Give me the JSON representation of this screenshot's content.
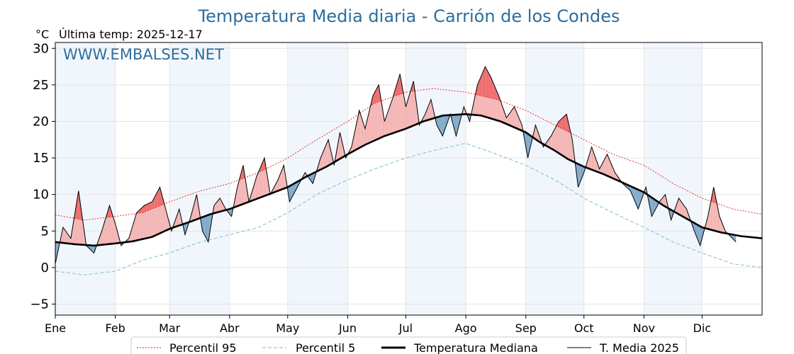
{
  "chart_data": {
    "type": "line",
    "title": "Temperatura Media diaria - Carrión de los Condes",
    "unit_label": "°C",
    "last_temp_label": "Última temp: 2025-12-17",
    "watermark": "WWW.EMBALSES.NET",
    "ylim": [
      -6.5,
      30.8
    ],
    "y_ticks": [
      -5,
      0,
      5,
      10,
      15,
      20,
      25,
      30
    ],
    "x_range_days": [
      0,
      365
    ],
    "months": [
      {
        "label": "Ene",
        "day": 0
      },
      {
        "label": "Feb",
        "day": 31
      },
      {
        "label": "Mar",
        "day": 59
      },
      {
        "label": "Abr",
        "day": 90
      },
      {
        "label": "May",
        "day": 120
      },
      {
        "label": "Jun",
        "day": 151
      },
      {
        "label": "Jul",
        "day": 181
      },
      {
        "label": "Ago",
        "day": 212
      },
      {
        "label": "Sep",
        "day": 243
      },
      {
        "label": "Oct",
        "day": 273
      },
      {
        "label": "Nov",
        "day": 304
      },
      {
        "label": "Dic",
        "day": 334
      }
    ],
    "grid": true,
    "legend_position": "bottom",
    "series": [
      {
        "name": "Percentil 95",
        "style": "dotted",
        "color": "#e41a1c",
        "points": [
          [
            0,
            7.2
          ],
          [
            15,
            6.5
          ],
          [
            31,
            7.0
          ],
          [
            45,
            7.5
          ],
          [
            59,
            9.0
          ],
          [
            75,
            10.5
          ],
          [
            90,
            11.5
          ],
          [
            105,
            13.0
          ],
          [
            120,
            15.0
          ],
          [
            135,
            17.5
          ],
          [
            151,
            20.0
          ],
          [
            165,
            22.5
          ],
          [
            181,
            24.0
          ],
          [
            195,
            24.5
          ],
          [
            212,
            24.0
          ],
          [
            228,
            23.0
          ],
          [
            243,
            21.5
          ],
          [
            258,
            19.5
          ],
          [
            273,
            17.5
          ],
          [
            288,
            15.5
          ],
          [
            304,
            14.0
          ],
          [
            319,
            11.5
          ],
          [
            334,
            9.5
          ],
          [
            350,
            8.0
          ],
          [
            365,
            7.3
          ]
        ]
      },
      {
        "name": "Percentil 5",
        "style": "dashed",
        "color": "#8fc6d9",
        "points": [
          [
            0,
            -0.5
          ],
          [
            15,
            -1.0
          ],
          [
            31,
            -0.5
          ],
          [
            45,
            1.0
          ],
          [
            59,
            2.0
          ],
          [
            75,
            3.5
          ],
          [
            90,
            4.5
          ],
          [
            105,
            5.5
          ],
          [
            120,
            7.5
          ],
          [
            135,
            10.0
          ],
          [
            151,
            12.0
          ],
          [
            165,
            13.5
          ],
          [
            181,
            15.0
          ],
          [
            195,
            16.0
          ],
          [
            212,
            17.0
          ],
          [
            228,
            15.5
          ],
          [
            243,
            14.0
          ],
          [
            258,
            12.0
          ],
          [
            273,
            9.5
          ],
          [
            288,
            7.5
          ],
          [
            304,
            5.5
          ],
          [
            319,
            3.5
          ],
          [
            334,
            2.0
          ],
          [
            350,
            0.5
          ],
          [
            365,
            0.0
          ]
        ]
      },
      {
        "name": "Temperatura Mediana",
        "style": "solid-thick",
        "color": "#000000",
        "points": [
          [
            0,
            3.5
          ],
          [
            10,
            3.2
          ],
          [
            20,
            3.0
          ],
          [
            31,
            3.3
          ],
          [
            40,
            3.6
          ],
          [
            50,
            4.2
          ],
          [
            59,
            5.3
          ],
          [
            70,
            6.3
          ],
          [
            80,
            7.3
          ],
          [
            90,
            8.0
          ],
          [
            100,
            9.0
          ],
          [
            110,
            10.0
          ],
          [
            120,
            11.0
          ],
          [
            130,
            12.5
          ],
          [
            140,
            13.8
          ],
          [
            151,
            15.5
          ],
          [
            160,
            16.8
          ],
          [
            170,
            18.0
          ],
          [
            181,
            19.0
          ],
          [
            190,
            20.0
          ],
          [
            200,
            20.8
          ],
          [
            212,
            21.0
          ],
          [
            220,
            20.8
          ],
          [
            230,
            20.0
          ],
          [
            243,
            18.5
          ],
          [
            250,
            17.2
          ],
          [
            258,
            16.0
          ],
          [
            265,
            14.8
          ],
          [
            273,
            13.8
          ],
          [
            283,
            12.8
          ],
          [
            294,
            11.5
          ],
          [
            304,
            10.3
          ],
          [
            314,
            8.5
          ],
          [
            324,
            7.0
          ],
          [
            334,
            5.5
          ],
          [
            344,
            4.8
          ],
          [
            354,
            4.3
          ],
          [
            365,
            4.0
          ]
        ]
      },
      {
        "name": "T. Media 2025",
        "style": "solid-thin",
        "color": "#000000",
        "points": [
          [
            0,
            0.5
          ],
          [
            4,
            5.5
          ],
          [
            8,
            4.0
          ],
          [
            12,
            10.5
          ],
          [
            16,
            3.0
          ],
          [
            20,
            2.0
          ],
          [
            24,
            5.0
          ],
          [
            28,
            8.5
          ],
          [
            31,
            6.0
          ],
          [
            34,
            3.0
          ],
          [
            38,
            4.0
          ],
          [
            42,
            7.5
          ],
          [
            46,
            8.5
          ],
          [
            50,
            9.0
          ],
          [
            54,
            11.0
          ],
          [
            57,
            8.0
          ],
          [
            60,
            5.0
          ],
          [
            64,
            8.0
          ],
          [
            67,
            4.5
          ],
          [
            70,
            7.0
          ],
          [
            73,
            10.0
          ],
          [
            76,
            5.0
          ],
          [
            79,
            3.5
          ],
          [
            82,
            8.5
          ],
          [
            85,
            9.5
          ],
          [
            88,
            8.0
          ],
          [
            91,
            7.0
          ],
          [
            94,
            11.0
          ],
          [
            97,
            14.0
          ],
          [
            100,
            9.0
          ],
          [
            104,
            12.5
          ],
          [
            108,
            15.0
          ],
          [
            111,
            10.0
          ],
          [
            115,
            12.0
          ],
          [
            118,
            14.0
          ],
          [
            121,
            9.0
          ],
          [
            125,
            11.0
          ],
          [
            129,
            13.0
          ],
          [
            133,
            11.5
          ],
          [
            137,
            15.0
          ],
          [
            141,
            17.5
          ],
          [
            144,
            14.0
          ],
          [
            147,
            18.5
          ],
          [
            150,
            15.0
          ],
          [
            153,
            16.5
          ],
          [
            157,
            21.5
          ],
          [
            160,
            19.0
          ],
          [
            164,
            23.5
          ],
          [
            167,
            25.0
          ],
          [
            170,
            20.0
          ],
          [
            174,
            23.0
          ],
          [
            178,
            26.5
          ],
          [
            181,
            22.0
          ],
          [
            185,
            25.5
          ],
          [
            188,
            19.5
          ],
          [
            191,
            21.0
          ],
          [
            194,
            23.0
          ],
          [
            197,
            19.5
          ],
          [
            200,
            18.0
          ],
          [
            204,
            21.0
          ],
          [
            207,
            18.0
          ],
          [
            211,
            22.0
          ],
          [
            214,
            20.0
          ],
          [
            218,
            25.0
          ],
          [
            222,
            27.5
          ],
          [
            225,
            26.0
          ],
          [
            229,
            23.5
          ],
          [
            233,
            20.5
          ],
          [
            237,
            22.0
          ],
          [
            241,
            19.5
          ],
          [
            244,
            15.0
          ],
          [
            248,
            19.5
          ],
          [
            252,
            16.5
          ],
          [
            256,
            18.0
          ],
          [
            260,
            20.0
          ],
          [
            264,
            21.0
          ],
          [
            267,
            17.5
          ],
          [
            270,
            11.0
          ],
          [
            273,
            13.0
          ],
          [
            277,
            16.5
          ],
          [
            281,
            13.5
          ],
          [
            285,
            15.5
          ],
          [
            289,
            13.0
          ],
          [
            293,
            11.5
          ],
          [
            297,
            10.5
          ],
          [
            301,
            8.0
          ],
          [
            305,
            11.0
          ],
          [
            308,
            7.0
          ],
          [
            312,
            9.0
          ],
          [
            315,
            10.0
          ],
          [
            318,
            6.5
          ],
          [
            322,
            9.5
          ],
          [
            326,
            8.0
          ],
          [
            330,
            5.0
          ],
          [
            333,
            3.0
          ],
          [
            337,
            7.0
          ],
          [
            340,
            11.0
          ],
          [
            343,
            7.0
          ],
          [
            346,
            5.0
          ],
          [
            351.5,
            3.5
          ]
        ]
      }
    ]
  },
  "legend": {
    "items": [
      "Percentil 95",
      "Percentil 5",
      "Temperatura Mediana",
      "T. Media 2025"
    ]
  },
  "colors": {
    "fill_above": "#f4b3b3",
    "fill_above_p95": "#ee6a6a",
    "fill_below": "#7fa8c9",
    "shade": "#f1f6fc",
    "title": "#2c6e9e"
  }
}
